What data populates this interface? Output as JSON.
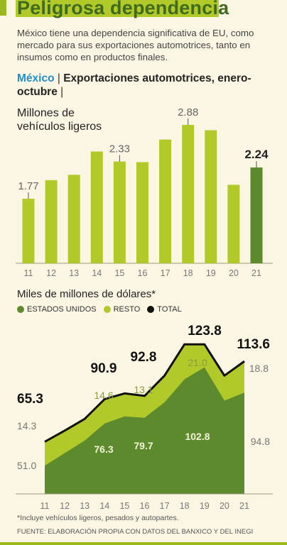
{
  "header": {
    "title": "Peligrosa dependencia",
    "subtitle": "México tiene una dependencia significativa de EU, como mercado para sus exportaciones automotrices, tanto en insumos como en productos finales.",
    "section_country": "México",
    "section_separator": "|",
    "section_title": "Exportaciones automotrices, enero-octubre",
    "section_end": "|"
  },
  "colors": {
    "light_green": "#b2c92a",
    "dark_green": "#5e8a2e",
    "total": "#111111",
    "background": "#fbf6e4"
  },
  "chart_data": [
    {
      "type": "bar",
      "ylabel": "Millones de vehículos ligeros",
      "categories": [
        "11",
        "12",
        "13",
        "14",
        "15",
        "16",
        "17",
        "18",
        "19",
        "20",
        "21"
      ],
      "values": [
        1.77,
        2.05,
        2.13,
        2.48,
        2.33,
        2.32,
        2.66,
        2.88,
        2.8,
        1.98,
        2.24
      ],
      "data_labels": [
        "1.77",
        "",
        "",
        "",
        "2.33",
        "",
        "",
        "2.88",
        "",
        "",
        "2.24"
      ],
      "highlight_last": true,
      "grid": false
    },
    {
      "type": "area",
      "ylabel": "Miles de millones de dólares*",
      "legend": [
        "ESTADOS UNIDOS",
        "RESTO",
        "TOTAL"
      ],
      "legend_position": "top-left",
      "categories": [
        "11",
        "12",
        "13",
        "14",
        "15",
        "16",
        "17",
        "18",
        "19",
        "20",
        "21"
      ],
      "series": [
        {
          "name": "ESTADOS UNIDOS",
          "values": [
            51.0,
            58.5,
            66.0,
            76.3,
            80.5,
            79.7,
            89.0,
            102.8,
            110.0,
            90.0,
            94.8
          ]
        },
        {
          "name": "RESTO",
          "values": [
            14.3,
            13.5,
            13.0,
            14.6,
            13.8,
            13.1,
            16.0,
            21.0,
            13.8,
            15.0,
            18.8
          ]
        },
        {
          "name": "TOTAL",
          "values": [
            65.3,
            72.0,
            79.0,
            90.9,
            94.3,
            92.8,
            105.0,
            123.8,
            123.8,
            105.0,
            113.6
          ]
        }
      ],
      "annotations": {
        "total": [
          {
            "i": 0,
            "text": "65.3"
          },
          {
            "i": 3,
            "text": "90.9"
          },
          {
            "i": 5,
            "text": "92.8"
          },
          {
            "i": 8,
            "text": "123.8"
          },
          {
            "i": 10,
            "text": "113.6"
          }
        ],
        "resto": [
          {
            "i": 0,
            "text": "14.3"
          },
          {
            "i": 3,
            "text": "14.6"
          },
          {
            "i": 5,
            "text": "13.1"
          },
          {
            "i": 7,
            "text": "21.0"
          },
          {
            "i": 10,
            "text": "18.8"
          }
        ],
        "eu": [
          {
            "i": 0,
            "text": "51.0"
          },
          {
            "i": 3,
            "text": "76.3"
          },
          {
            "i": 5,
            "text": "79.7"
          },
          {
            "i": 7,
            "text": "102.8"
          },
          {
            "i": 10,
            "text": "94.8"
          }
        ]
      }
    }
  ],
  "footnote": "*Incluye vehículos ligeros, pesados y autopartes.",
  "source": "FUENTE: ELABORACIÓN PROPIA CON DATOS DEL BANXICO Y DEL INEGI"
}
